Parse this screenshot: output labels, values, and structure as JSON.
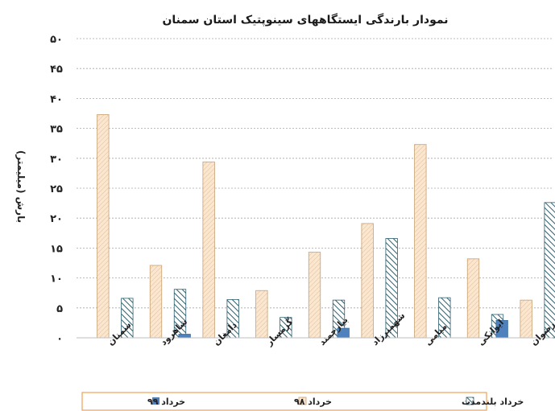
{
  "chart_data": {
    "type": "bar",
    "title": "نمودار بارندگی ایستگاههای سینوپتیک استان سمنان",
    "ylabel": "بارش (میلیمتر)",
    "xlabel": "",
    "ylim": [
      0,
      50
    ],
    "yticks": [
      "۰",
      "۵",
      "۱۰",
      "۱۵",
      "۲۰",
      "۲۵",
      "۳۰",
      "۳۵",
      "۴۰",
      "۴۵",
      "۵۰"
    ],
    "grid": true,
    "legend_position": "bottom",
    "categories": [
      "سمنان",
      "شاهرود",
      "دامغان",
      "گرمسار",
      "بیارجمند",
      "شهمیرزاد",
      "میامی",
      "ایوانکی",
      "رضوان"
    ],
    "series": [
      {
        "name": "خرداد ۹۹",
        "color": "#4f81bd",
        "values": [
          0,
          0,
          0.6,
          0,
          0,
          1.6,
          0,
          0,
          2.9
        ]
      },
      {
        "name": "خرداد ۹۸",
        "color": "#f6d7b8",
        "values": [
          37.3,
          12.1,
          29.4,
          7.9,
          14.3,
          19.1,
          32.3,
          13.2,
          6.3
        ]
      },
      {
        "name": "خرداد بلندمدت",
        "color": "#2d5f6e",
        "values": [
          6.6,
          8.1,
          6.4,
          3.4,
          6.3,
          16.6,
          6.7,
          3.9,
          22.6
        ]
      }
    ]
  }
}
